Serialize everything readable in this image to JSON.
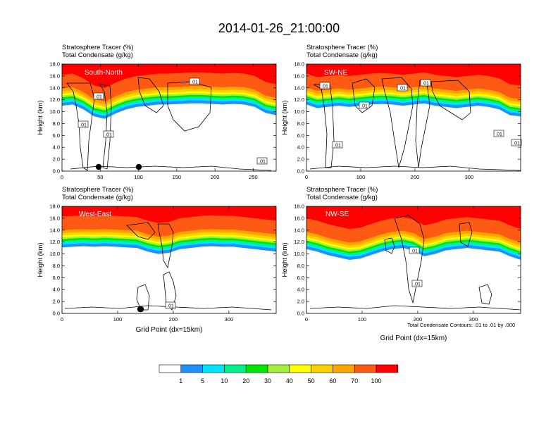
{
  "title": "2014-01-26_21:00:00",
  "colors": {
    "levels": [
      "#ffffff",
      "#1e90ff",
      "#00e5ff",
      "#00f28c",
      "#00e600",
      "#a6f03c",
      "#ffff00",
      "#ffd000",
      "#ffa500",
      "#ff5a14",
      "#ff0000"
    ]
  },
  "colorbar": {
    "labels": [
      "1",
      "5",
      "10",
      "20",
      "30",
      "40",
      "50",
      "60",
      "70",
      "100"
    ]
  },
  "footnote": "Total Condensate Contours: .01 to .01 by .000",
  "chart_data": [
    {
      "type": "heatmap",
      "region": "South-North",
      "header_line1": "Stratosphere Tracer   (%)",
      "header_line2": "Total Condensate   (g/kg)",
      "ylabel": "Height (km)",
      "xlabel": "",
      "xlim": [
        0,
        280
      ],
      "ylim": [
        0,
        18
      ],
      "xticks": [
        0,
        50,
        100,
        150,
        200,
        250
      ],
      "yticks": [
        "0.0",
        "2.0",
        "4.0",
        "6.0",
        "8.0",
        "10.0",
        "12.0",
        "14.0",
        "16.0",
        "18.0"
      ],
      "contour_labels": [
        ".01",
        ".01",
        ".01",
        ".01",
        ".01"
      ],
      "tropopause_km": [
        14.8,
        15.0,
        14.2,
        13.0,
        12.6,
        13.5,
        14.2,
        14.6,
        14.8,
        15.0,
        15.0,
        15.1,
        15.2,
        15.2,
        15.1,
        15.0,
        15.1,
        15.0,
        14.6,
        13.6,
        13.2
      ]
    },
    {
      "type": "heatmap",
      "region": "SW-NE",
      "header_line1": "Stratosphere Tracer   (%)",
      "header_line2": "Total Condensate   (g/kg)",
      "ylabel": "Height (km)",
      "xlabel": "",
      "xlim": [
        0,
        395
      ],
      "ylim": [
        0,
        18
      ],
      "xticks": [
        0,
        100,
        200,
        300
      ],
      "yticks": [
        "0.0",
        "2.0",
        "4.0",
        "6.0",
        "8.0",
        "10.0",
        "12.0",
        "14.0",
        "16.0",
        "18.0"
      ],
      "contour_labels": [
        ".01",
        ".01",
        ".01",
        ".01",
        ".01",
        ".01",
        ".01"
      ],
      "tropopause_km": [
        15.0,
        14.4,
        14.6,
        14.8,
        14.6,
        14.8,
        15.0,
        15.1,
        15.0,
        14.8,
        15.0,
        15.2,
        14.8,
        14.6,
        14.4,
        14.6,
        14.8,
        14.6,
        14.2,
        13.2,
        13.0
      ]
    },
    {
      "type": "heatmap",
      "region": "West-East",
      "header_line1": "Stratosphere Tracer   (%)",
      "header_line2": "Total Condensate   (g/kg)",
      "ylabel": "Height (km)",
      "xlabel": "Grid Point (dx=15km)",
      "xlim": [
        0,
        385
      ],
      "ylim": [
        0,
        18
      ],
      "xticks": [
        0,
        100,
        200,
        300
      ],
      "yticks": [
        "0.0",
        "2.0",
        "4.0",
        "6.0",
        "8.0",
        "10.0",
        "12.0",
        "14.0",
        "16.0",
        "18.0"
      ],
      "contour_labels": [
        ".01"
      ],
      "tropopause_km": [
        14.9,
        15.0,
        15.1,
        15.0,
        15.1,
        15.0,
        14.9,
        14.8,
        14.2,
        13.8,
        14.0,
        14.6,
        14.8,
        15.0,
        15.1,
        15.0,
        15.0,
        14.8,
        14.6,
        14.4,
        14.2
      ]
    },
    {
      "type": "heatmap",
      "region": "NW-SE",
      "header_line1": "Stratosphere Tracer   (%)",
      "header_line2": "Total Condensate   (g/kg)",
      "ylabel": "Height (km)",
      "xlabel": "Grid Point (dx=15km)",
      "xlim": [
        0,
        385
      ],
      "ylim": [
        0,
        18
      ],
      "xticks": [
        0,
        100,
        200,
        300
      ],
      "yticks": [
        "0.0",
        "2.0",
        "4.0",
        "6.0",
        "8.0",
        "10.0",
        "12.0",
        "14.0",
        "16.0",
        "18.0"
      ],
      "contour_labels": [
        ".01",
        ".01"
      ],
      "tropopause_km": [
        14.6,
        14.2,
        13.6,
        13.2,
        12.8,
        13.0,
        13.6,
        14.2,
        14.6,
        14.8,
        14.4,
        13.4,
        13.8,
        14.4,
        14.6,
        14.8,
        14.6,
        14.4,
        14.2,
        13.4,
        12.8
      ]
    }
  ]
}
